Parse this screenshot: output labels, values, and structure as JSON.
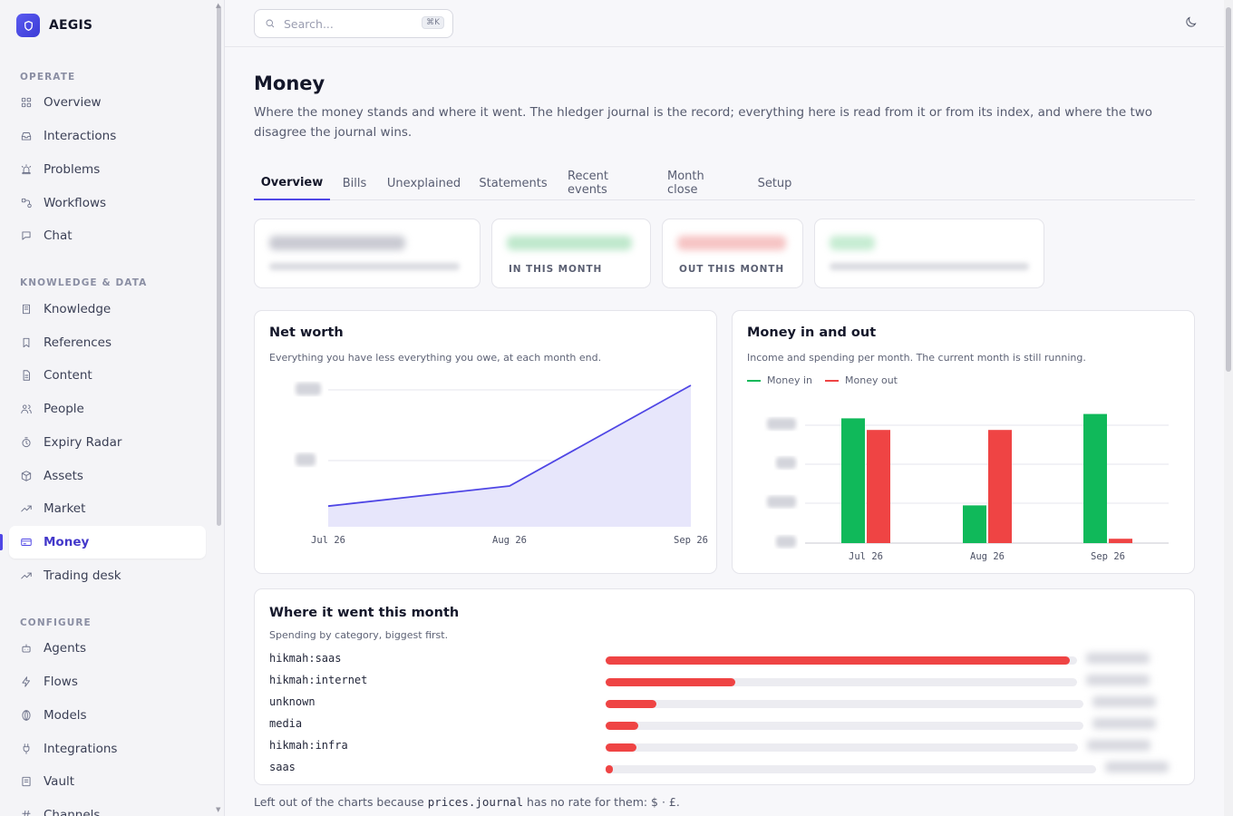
{
  "brand": {
    "name": "AEGIS"
  },
  "sidebar": {
    "sections": [
      {
        "title": "OPERATE"
      },
      {
        "title": "KNOWLEDGE & DATA"
      },
      {
        "title": "CONFIGURE"
      }
    ],
    "items": [
      {
        "label": "Overview",
        "icon": "grid-icon"
      },
      {
        "label": "Interactions",
        "icon": "inbox-icon"
      },
      {
        "label": "Problems",
        "icon": "siren-icon"
      },
      {
        "label": "Workflows",
        "icon": "workflow-icon"
      },
      {
        "label": "Chat",
        "icon": "chat-icon"
      },
      {
        "label": "Knowledge",
        "icon": "book-icon"
      },
      {
        "label": "References",
        "icon": "bookmark-icon"
      },
      {
        "label": "Content",
        "icon": "file-icon"
      },
      {
        "label": "People",
        "icon": "users-icon"
      },
      {
        "label": "Expiry Radar",
        "icon": "timer-icon"
      },
      {
        "label": "Assets",
        "icon": "box-icon"
      },
      {
        "label": "Market",
        "icon": "trending-icon"
      },
      {
        "label": "Money",
        "icon": "card-icon",
        "active": true
      },
      {
        "label": "Trading desk",
        "icon": "trending-icon"
      },
      {
        "label": "Agents",
        "icon": "bot-icon"
      },
      {
        "label": "Flows",
        "icon": "bolt-icon"
      },
      {
        "label": "Models",
        "icon": "model-icon"
      },
      {
        "label": "Integrations",
        "icon": "plug-icon"
      },
      {
        "label": "Vault",
        "icon": "vault-icon"
      },
      {
        "label": "Channels",
        "icon": "hash-icon"
      }
    ]
  },
  "search": {
    "placeholder": "Search...",
    "shortcut": "⌘K"
  },
  "page": {
    "title": "Money",
    "description": "Where the money stands and where it went. The hledger journal is the record; everything here is read from it or from its index, and where the two disagree the journal wins."
  },
  "tabs": [
    "Overview",
    "Bills",
    "Unexplained",
    "Statements",
    "Recent events",
    "Month close",
    "Setup"
  ],
  "stats": [
    {
      "label": ""
    },
    {
      "label": "IN THIS MONTH"
    },
    {
      "label": "OUT THIS MONTH"
    },
    {
      "label": ""
    }
  ],
  "net_worth": {
    "title": "Net worth",
    "subtitle": "Everything you have less everything you owe, at each month end.",
    "chart_data": {
      "type": "area",
      "categories": [
        "Jul 26",
        "Aug 26",
        "Sep 26"
      ],
      "values": [
        0.1,
        0.25,
        1.0
      ],
      "note": "y-axis values obscured; relative values only",
      "color": "#4f46e5"
    }
  },
  "money_in_out": {
    "title": "Money in and out",
    "subtitle": "Income and spending per month. The current month is still running.",
    "chart_data": {
      "type": "bar",
      "categories": [
        "Jul 26",
        "Aug 26",
        "Sep 26"
      ],
      "series": [
        {
          "name": "Money in",
          "color": "#10b95a",
          "values": [
            0.86,
            0.26,
            0.89
          ]
        },
        {
          "name": "Money out",
          "color": "#ef4444",
          "values": [
            0.78,
            0.78,
            0.03
          ]
        }
      ]
    }
  },
  "spending": {
    "title": "Where it went this month",
    "subtitle": "Spending by category, biggest first.",
    "categories": [
      {
        "name": "hikmah:saas",
        "share": 1.0
      },
      {
        "name": "hikmah:internet",
        "share": 0.28
      },
      {
        "name": "unknown",
        "share": 0.11
      },
      {
        "name": "media",
        "share": 0.07
      },
      {
        "name": "hikmah:infra",
        "share": 0.066
      },
      {
        "name": "saas",
        "share": 0.015
      }
    ]
  },
  "footnote": {
    "prefix": "Left out of the charts because",
    "file": "prices.journal",
    "suffix": "has no rate for them: $ · £."
  }
}
